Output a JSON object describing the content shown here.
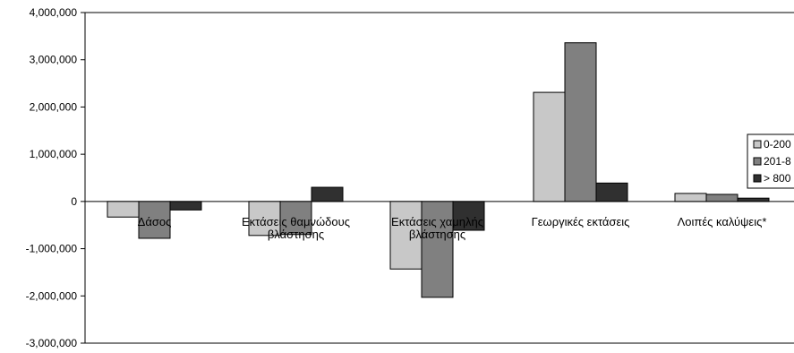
{
  "chart_data": {
    "type": "bar",
    "categories": [
      [
        "Δάσος"
      ],
      [
        "Εκτάσεις θαμνώδους",
        "βλάστησης"
      ],
      [
        "Εκτάσεις χαμηλής",
        "βλάστησης"
      ],
      [
        "Γεωργικές εκτάσεις"
      ],
      [
        "Λοιπές καλύψεις*"
      ]
    ],
    "series": [
      {
        "name": "0-200",
        "color": "#c8c8c8",
        "values": [
          -330000,
          -720000,
          -1430000,
          2310000,
          170000
        ]
      },
      {
        "name": "201-8",
        "color": "#808080",
        "values": [
          -780000,
          -700000,
          -2030000,
          3360000,
          150000
        ]
      },
      {
        "name": "> 800",
        "color": "#303030",
        "values": [
          -180000,
          300000,
          -610000,
          390000,
          70000
        ]
      }
    ],
    "y_ticks": [
      "4,000,000",
      "3,000,000",
      "2,000,000",
      "1,000,000",
      "0",
      "-1,000,000",
      "-2,000,000",
      "-3,000,000"
    ],
    "ylim": [
      -3000000,
      4000000
    ],
    "legend_position": "right",
    "grid": false
  }
}
